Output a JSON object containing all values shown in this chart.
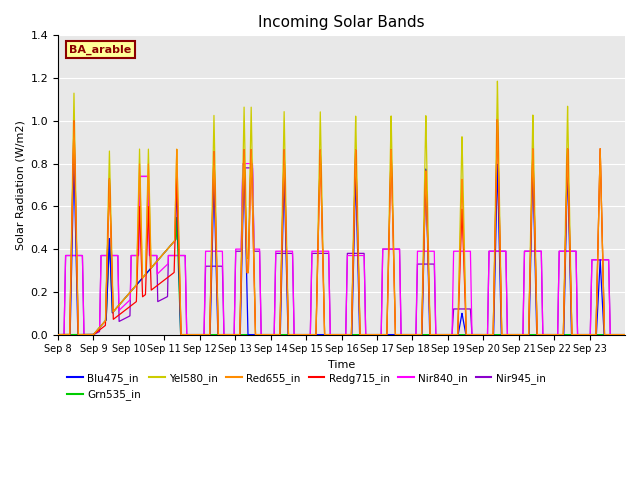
{
  "title": "Incoming Solar Bands",
  "xlabel": "Time",
  "ylabel": "Solar Radiation (W/m2)",
  "annotation_text": "BA_arable",
  "annotation_color": "#8B0000",
  "annotation_bg": "#FFFF99",
  "annotation_border": "#8B0000",
  "ylim": [
    0.0,
    1.4
  ],
  "yticks": [
    0.0,
    0.2,
    0.4,
    0.6,
    0.8,
    1.0,
    1.2,
    1.4
  ],
  "xtick_labels": [
    "Sep 8",
    "Sep 9",
    "Sep 10",
    "Sep 11",
    "Sep 12",
    "Sep 13",
    "Sep 14",
    "Sep 15",
    "Sep 16",
    "Sep 17",
    "Sep 18",
    "Sep 19",
    "Sep 20",
    "Sep 21",
    "Sep 22",
    "Sep 23"
  ],
  "legend_entries": [
    {
      "label": "Blu475_in",
      "color": "#0000FF"
    },
    {
      "label": "Grn535_in",
      "color": "#00CC00"
    },
    {
      "label": "Yel580_in",
      "color": "#CCCC00"
    },
    {
      "label": "Red655_in",
      "color": "#FF8C00"
    },
    {
      "label": "Redg715_in",
      "color": "#FF0000"
    },
    {
      "label": "Nir840_in",
      "color": "#FF00FF"
    },
    {
      "label": "Nir945_in",
      "color": "#8B00CC"
    }
  ],
  "bg_color": "#E8E8E8",
  "grid_color": "#FFFFFF",
  "figsize": [
    6.4,
    4.8
  ],
  "dpi": 100
}
